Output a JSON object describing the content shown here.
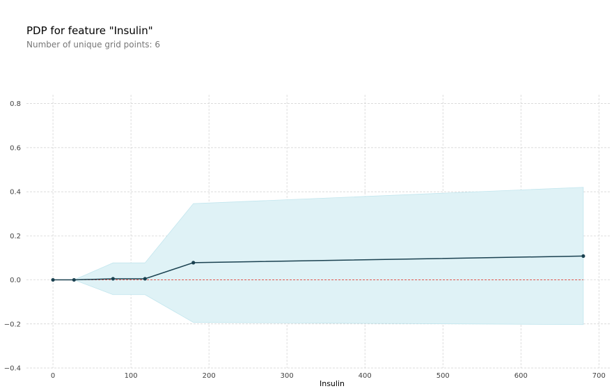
{
  "title": "PDP for feature \"Insulin\"",
  "subtitle": "Number of unique grid points: 6",
  "chart_data": {
    "type": "line",
    "title": "PDP for feature \"Insulin\"",
    "subtitle": "Number of unique grid points: 6",
    "xlabel": "Insulin",
    "ylabel": "",
    "xlim": [
      -34,
      714
    ],
    "ylim": [
      -0.4,
      0.84
    ],
    "xticks": [
      0,
      100,
      200,
      300,
      400,
      500,
      600,
      700
    ],
    "yticks": [
      -0.4,
      -0.2,
      0.0,
      0.2,
      0.4,
      0.6,
      0.8
    ],
    "xtick_labels": [
      "0",
      "100",
      "200",
      "300",
      "400",
      "500",
      "600",
      "700"
    ],
    "ytick_labels": [
      "−0.4",
      "−0.2",
      "0.0",
      "0.2",
      "0.4",
      "0.6",
      "0.8"
    ],
    "grid": true,
    "x": [
      0,
      27,
      77,
      118,
      180,
      680
    ],
    "series": [
      {
        "values": [
          0.0,
          0.0,
          0.005,
          0.005,
          0.078,
          0.108
        ],
        "upper": [
          0.0,
          0.0,
          0.077,
          0.077,
          0.346,
          0.42
        ],
        "lower": [
          0.0,
          0.0,
          -0.067,
          -0.067,
          -0.193,
          -0.203
        ]
      }
    ],
    "reference_line": 0.0,
    "colors": {
      "line": "#1a4150",
      "band": "#dff2f6",
      "band_edge": "#c2e6ee",
      "reference": "#e0544b",
      "grid": "#cfcfcf"
    }
  }
}
